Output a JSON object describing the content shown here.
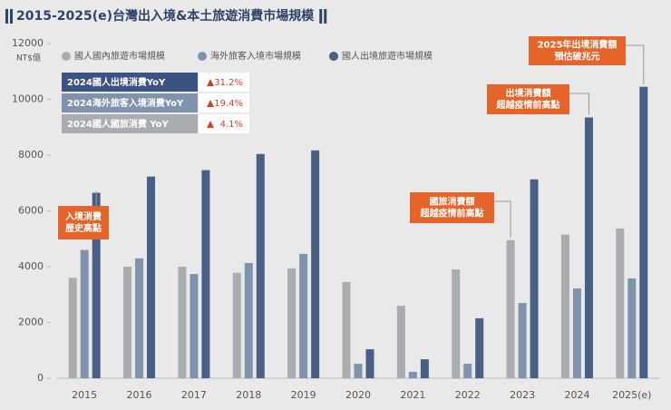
{
  "chart_data": {
    "type": "bar",
    "title": "2015-2025(e)台灣出入境&本土旅遊消費市場規模",
    "y_unit": "NT$億",
    "categories": [
      "2015",
      "2016",
      "2017",
      "2018",
      "2019",
      "2020",
      "2021",
      "2022",
      "2023",
      "2024",
      "2025(e)"
    ],
    "series": [
      {
        "name": "國人國內旅遊市場規模",
        "color": "#a9acb1",
        "values": [
          3600,
          4000,
          4000,
          3780,
          3940,
          3450,
          2600,
          3900,
          4950,
          5150,
          5370
        ]
      },
      {
        "name": "海外旅客入境市場規模",
        "color": "#7f93ad",
        "values": [
          4600,
          4300,
          3740,
          4130,
          4460,
          520,
          230,
          520,
          2700,
          3220,
          3580
        ]
      },
      {
        "name": "國人出境旅遊市場規模",
        "color": "#4a5f86",
        "values": [
          6650,
          7230,
          7460,
          8040,
          8170,
          1040,
          680,
          2150,
          7130,
          9350,
          10450
        ]
      }
    ],
    "ylim": [
      0,
      12000
    ],
    "yticks": [
      0,
      2000,
      4000,
      6000,
      8000,
      10000,
      12000
    ],
    "grid": false,
    "yoy_table": [
      {
        "label": "2024國人出境消費YoY",
        "value": "31.2%"
      },
      {
        "label": "2024海外旅客入境消費YoY",
        "value": "19.4%"
      },
      {
        "label": "2024國人國旅消費 YoY",
        "value": "4.1%"
      }
    ],
    "annotations": [
      {
        "lines": [
          "入境消費",
          "歷史高點"
        ]
      },
      {
        "lines": [
          "國旅消費額",
          "超越疫情前高點"
        ]
      },
      {
        "lines": [
          "出境消費額",
          "超越疫情前高點"
        ]
      },
      {
        "lines": [
          "2025年出境消費額",
          "預估破兆元"
        ]
      }
    ]
  }
}
